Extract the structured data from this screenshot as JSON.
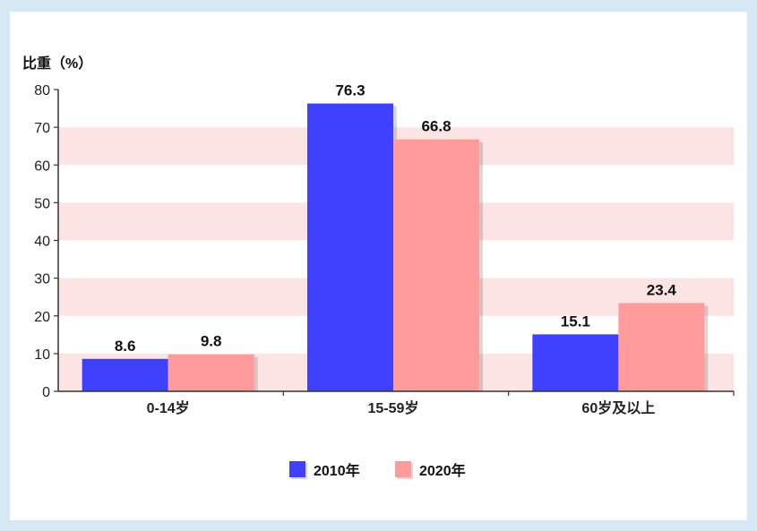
{
  "chart_data": {
    "type": "bar",
    "ylabel": "比重（%）",
    "ylim": [
      0,
      80
    ],
    "yticks": [
      0,
      10,
      20,
      30,
      40,
      50,
      60,
      70,
      80
    ],
    "categories": [
      "0-14岁",
      "15-59岁",
      "60岁及以上"
    ],
    "series": [
      {
        "name": "2010年",
        "values": [
          8.6,
          76.3,
          15.1
        ],
        "color": "#4040ff"
      },
      {
        "name": "2020年",
        "values": [
          9.8,
          66.8,
          23.4
        ],
        "color": "#ff9b9b"
      }
    ],
    "data_labels": [
      [
        "8.6",
        "76.3",
        "15.1"
      ],
      [
        "9.8",
        "66.8",
        "23.4"
      ]
    ],
    "grid": "alternating horizontal bands",
    "band_color": "#fde4e4",
    "legend_position": "bottom-center"
  }
}
